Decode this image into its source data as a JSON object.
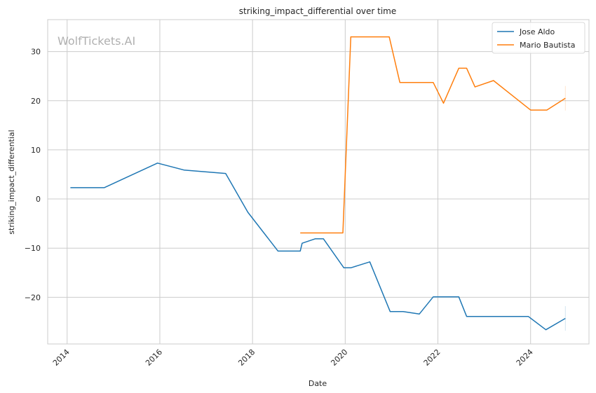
{
  "chart_data": {
    "type": "line",
    "title": "striking_impact_differential over time",
    "xlabel": "Date",
    "ylabel": "striking_impact_differential",
    "watermark": "WolfTickets.AI",
    "xlim": [
      2013.58,
      2025.26
    ],
    "ylim": [
      -29.5,
      36.5
    ],
    "x_ticks": [
      2014,
      2016,
      2018,
      2020,
      2022,
      2024
    ],
    "y_ticks": [
      -20,
      -10,
      0,
      10,
      20,
      30
    ],
    "grid": true,
    "legend_position": "top-right",
    "series": [
      {
        "name": "Jose Aldo",
        "color": "#1f77b4",
        "points": [
          [
            2014.07,
            2.3
          ],
          [
            2014.8,
            2.3
          ],
          [
            2015.95,
            7.3
          ],
          [
            2016.52,
            5.9
          ],
          [
            2017.42,
            5.2
          ],
          [
            2017.9,
            -2.7
          ],
          [
            2018.55,
            -10.6
          ],
          [
            2019.03,
            -10.6
          ],
          [
            2019.07,
            -9.0
          ],
          [
            2019.35,
            -8.1
          ],
          [
            2019.53,
            -8.1
          ],
          [
            2019.97,
            -14.0
          ],
          [
            2020.12,
            -14.0
          ],
          [
            2020.53,
            -12.8
          ],
          [
            2020.97,
            -22.9
          ],
          [
            2021.25,
            -22.9
          ],
          [
            2021.6,
            -23.4
          ],
          [
            2021.9,
            -19.9
          ],
          [
            2022.45,
            -19.9
          ],
          [
            2022.62,
            -23.9
          ],
          [
            2023.95,
            -23.9
          ],
          [
            2024.33,
            -26.6
          ],
          [
            2024.75,
            -24.3
          ]
        ]
      },
      {
        "name": "Mario Bautista",
        "color": "#ff7f0e",
        "points": [
          [
            2019.03,
            -6.9
          ],
          [
            2019.95,
            -6.9
          ],
          [
            2020.12,
            33.0
          ],
          [
            2020.95,
            33.0
          ],
          [
            2021.18,
            23.7
          ],
          [
            2021.9,
            23.7
          ],
          [
            2022.12,
            19.5
          ],
          [
            2022.45,
            26.6
          ],
          [
            2022.62,
            26.6
          ],
          [
            2022.8,
            22.8
          ],
          [
            2023.2,
            24.1
          ],
          [
            2024.0,
            18.1
          ],
          [
            2024.35,
            18.1
          ],
          [
            2024.75,
            20.5
          ]
        ]
      }
    ]
  }
}
